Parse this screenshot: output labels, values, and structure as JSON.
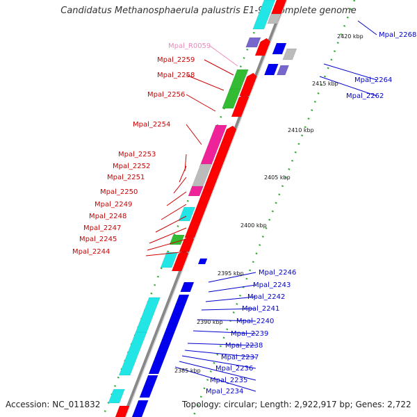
{
  "title": "Candidatus Methanosphaerula palustris E1-9c, complete genome",
  "accession": "Accession: NC_011832",
  "topology": "Topology: circular; Length: 2,922,917 bp; Genes: 2,722",
  "colors": {
    "forward_label": "#cc0000",
    "reverse_label": "#0000cc",
    "rna_label": "#ee88bb",
    "forward_gene": "#ff0000",
    "reverse_gene": "#0000ee",
    "cyan": "#22e5e5",
    "green": "#33bb33",
    "magenta": "#ee2299",
    "grey": "#bbbbbb",
    "purple": "#7766cc",
    "ticks": "#33aa33",
    "backbone": "#888888"
  },
  "kbp_ticks": [
    "2420 kbp",
    "2415 kbp",
    "2410 kbp",
    "2405 kbp",
    "2400 kbp",
    "2395 kbp",
    "2390 kbp",
    "2385 kbp"
  ],
  "left_labels": [
    {
      "text": "Mpal_R0059",
      "color": "rna"
    },
    {
      "text": "Mpal_2259",
      "color": "fwd"
    },
    {
      "text": "Mpal_2258",
      "color": "fwd"
    },
    {
      "text": "Mpal_2256",
      "color": "fwd"
    },
    {
      "text": "Mpal_2254",
      "color": "fwd"
    },
    {
      "text": "Mpal_2253",
      "color": "fwd"
    },
    {
      "text": "Mpal_2252",
      "color": "fwd"
    },
    {
      "text": "Mpal_2251",
      "color": "fwd"
    },
    {
      "text": "Mpal_2250",
      "color": "fwd"
    },
    {
      "text": "Mpal_2249",
      "color": "fwd"
    },
    {
      "text": "Mpal_2248",
      "color": "fwd"
    },
    {
      "text": "Mpal_2247",
      "color": "fwd"
    },
    {
      "text": "Mpal_2245",
      "color": "fwd"
    },
    {
      "text": "Mpal_2244",
      "color": "fwd"
    }
  ],
  "right_labels": [
    "Mpal_2268",
    "Mpal_2264",
    "Mpal_2262",
    "Mpal_2246",
    "Mpal_2243",
    "Mpal_2242",
    "Mpal_2241",
    "Mpal_2240",
    "Mpal_2239",
    "Mpal_2238",
    "Mpal_2237",
    "Mpal_2236",
    "Mpal_2235",
    "Mpal_2234"
  ]
}
